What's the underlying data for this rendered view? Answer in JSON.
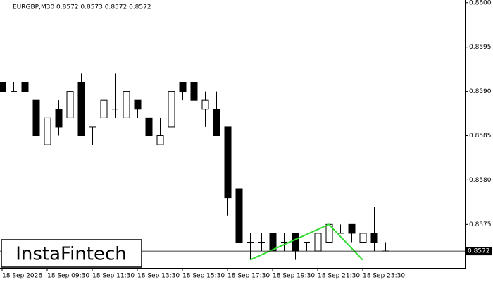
{
  "chart_data": {
    "type": "candlestick",
    "title": "EURGBP,M30  0.8572 0.8573 0.8572 0.8572",
    "logo": "InstaFintech",
    "categories": [
      "18 Sep 2026",
      null,
      null,
      null,
      "18 Sep 09:30",
      null,
      null,
      null,
      "18 Sep 11:30",
      null,
      null,
      null,
      "18 Sep 13:30",
      null,
      null,
      null,
      "18 Sep 15:30",
      null,
      null,
      null,
      "18 Sep 17:30",
      null,
      null,
      null,
      "18 Sep 19:30",
      null,
      null,
      null,
      "18 Sep 21:30",
      null,
      null,
      null,
      "18 Sep 23:30",
      null,
      null
    ],
    "open": [
      0.8591,
      0.859,
      0.8591,
      0.8589,
      0.8584,
      0.8588,
      0.8587,
      0.8591,
      0.8586,
      0.8587,
      0.8588,
      0.8587,
      0.8589,
      0.8587,
      0.8584,
      0.8586,
      0.8591,
      0.8591,
      0.8588,
      0.8588,
      0.8586,
      0.8579,
      0.8573,
      0.8573,
      0.8574,
      0.8573,
      0.8574,
      0.8573,
      0.8572,
      0.8573,
      0.8574,
      0.8575,
      0.8573,
      0.8574,
      0.8572
    ],
    "high": [
      0.8591,
      0.8591,
      0.8591,
      0.8589,
      0.8587,
      0.8589,
      0.8591,
      0.8592,
      0.8586,
      0.8589,
      0.8592,
      0.859,
      0.8589,
      0.8587,
      0.8587,
      0.859,
      0.8591,
      0.8592,
      0.859,
      0.859,
      0.8586,
      0.8579,
      0.8574,
      0.8574,
      0.8574,
      0.8574,
      0.8574,
      0.8573,
      0.8574,
      0.8575,
      0.8575,
      0.8575,
      0.8574,
      0.8577,
      0.8573
    ],
    "low": [
      0.859,
      0.859,
      0.8589,
      0.8585,
      0.8584,
      0.8585,
      0.8586,
      0.8585,
      0.8584,
      0.8586,
      0.8587,
      0.8587,
      0.8587,
      0.8583,
      0.8584,
      0.8586,
      0.8589,
      0.8589,
      0.8586,
      0.8585,
      0.8576,
      0.8572,
      0.8571,
      0.8572,
      0.8571,
      0.8572,
      0.8571,
      0.8572,
      0.8572,
      0.8573,
      0.8574,
      0.8573,
      0.8572,
      0.8572,
      0.8572
    ],
    "close": [
      0.859,
      0.859,
      0.859,
      0.8585,
      0.8587,
      0.8586,
      0.859,
      0.8585,
      0.8586,
      0.8589,
      0.8588,
      0.859,
      0.8588,
      0.8585,
      0.8585,
      0.859,
      0.859,
      0.8589,
      0.8589,
      0.8585,
      0.8578,
      0.8573,
      0.8573,
      0.8573,
      0.8572,
      0.8573,
      0.8572,
      0.8573,
      0.8574,
      0.8575,
      0.8574,
      0.8574,
      0.8574,
      0.8573,
      0.8572
    ],
    "pattern": {
      "color": "#33dd33",
      "x": [
        22,
        29,
        32
      ],
      "y": [
        0.8571,
        0.8575,
        0.8571
      ]
    },
    "current_price": {
      "value": 0.8572,
      "label": "0.8572"
    },
    "ylim": [
      0.85701,
      0.86003
    ],
    "yticks": [
      {
        "value": 0.86,
        "label": "0.8600"
      },
      {
        "value": 0.8595,
        "label": "0.8595"
      },
      {
        "value": 0.859,
        "label": "0.8590"
      },
      {
        "value": 0.8585,
        "label": "0.8585"
      },
      {
        "value": 0.858,
        "label": "0.8580"
      },
      {
        "value": 0.8575,
        "label": "0.8575"
      }
    ]
  }
}
